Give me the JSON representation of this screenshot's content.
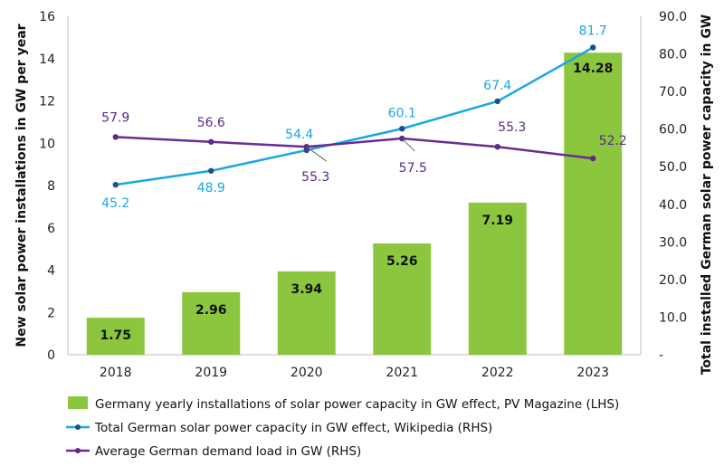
{
  "chart_data": {
    "type": "bar",
    "categories": [
      "2018",
      "2019",
      "2020",
      "2021",
      "2022",
      "2023"
    ],
    "series": [
      {
        "name": "Germany yearly installations of solar power capacity in GW effect, PV Magazine (LHS)",
        "type": "bar",
        "axis": "left",
        "color": "#8cc63f",
        "values": [
          1.75,
          2.96,
          3.94,
          5.26,
          7.19,
          14.28
        ],
        "labels": [
          "1.75",
          "2.96",
          "3.94",
          "5.26",
          "7.19",
          "14.28"
        ]
      },
      {
        "name": "Total German solar power capacity in GW effect, Wikipedia (RHS)",
        "type": "line",
        "axis": "right",
        "color": "#1aa7e0",
        "marker_color": "#1f4e8c",
        "values": [
          45.2,
          48.9,
          54.4,
          60.1,
          67.4,
          81.7
        ],
        "labels": [
          "45.2",
          "48.9",
          "54.4",
          "60.1",
          "67.4",
          "81.7"
        ]
      },
      {
        "name": "Average German demand load in GW (RHS)",
        "type": "line",
        "axis": "right",
        "color": "#6a2c91",
        "marker_color": "#5b2a86",
        "values": [
          57.9,
          56.6,
          55.3,
          57.5,
          55.3,
          52.2
        ],
        "labels": [
          "57.9",
          "56.6",
          "55.3",
          "57.5",
          "55.3",
          "52.2"
        ]
      }
    ],
    "ylabel": "New solar power installations in GW per year",
    "y2label": "Total installed German solar power capacity in GW",
    "ylim": [
      0,
      16
    ],
    "y2lim": [
      0,
      90
    ],
    "yticks": [
      "0",
      "2",
      "4",
      "6",
      "8",
      "10",
      "12",
      "14",
      "16"
    ],
    "y2ticks": [
      "-",
      "10.0",
      "20.0",
      "30.0",
      "40.0",
      "50.0",
      "60.0",
      "70.0",
      "80.0",
      "90.0"
    ],
    "grid": false,
    "legend_position": "bottom"
  }
}
